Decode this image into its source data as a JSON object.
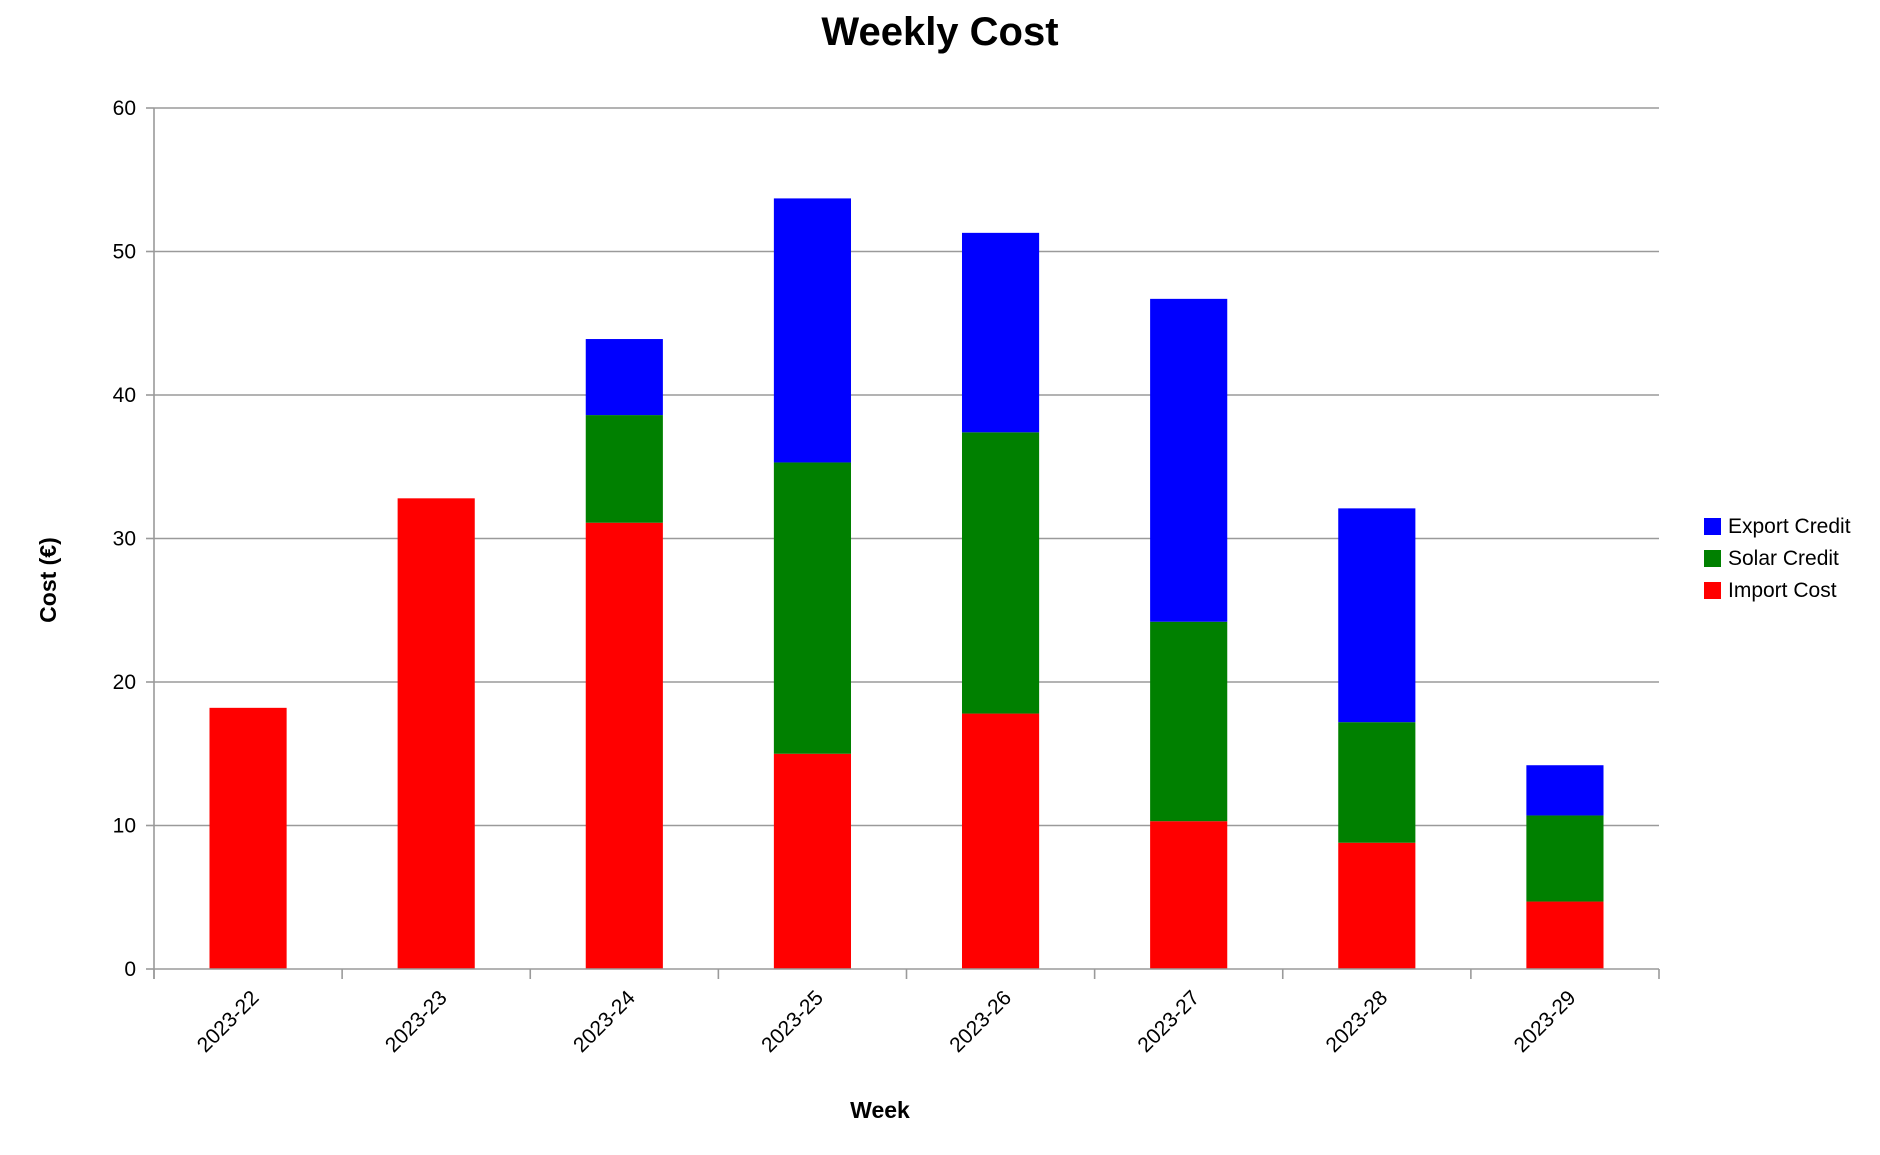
{
  "chart_data": {
    "type": "bar",
    "stacked": true,
    "title": "Weekly Cost",
    "xlabel": "Week",
    "ylabel": "Cost (€)",
    "ylim": [
      0,
      60
    ],
    "yticks": [
      "0",
      "10",
      "20",
      "30",
      "40",
      "50",
      "60"
    ],
    "grid": true,
    "legend_position": "right",
    "categories": [
      "2023-22",
      "2023-23",
      "2023-24",
      "2023-25",
      "2023-26",
      "2023-27",
      "2023-28",
      "2023-29"
    ],
    "series": [
      {
        "name": "Import Cost",
        "color": "#ff0000",
        "values": [
          18.2,
          32.8,
          31.1,
          15.0,
          17.8,
          10.3,
          8.8,
          4.7
        ]
      },
      {
        "name": "Solar Credit",
        "color": "#008000",
        "values": [
          0,
          0,
          7.5,
          20.3,
          19.6,
          13.9,
          8.4,
          6.0
        ]
      },
      {
        "name": "Export Credit",
        "color": "#0000ff",
        "values": [
          0,
          0,
          5.3,
          18.4,
          13.9,
          22.5,
          14.9,
          3.5
        ]
      }
    ]
  }
}
